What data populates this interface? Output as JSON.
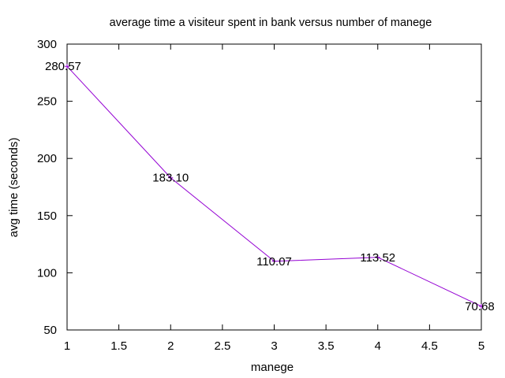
{
  "chart_data": {
    "type": "line",
    "title": "average time a visiteur spent in bank versus number of manege",
    "xlabel": "manege",
    "ylabel": "avg time (seconds)",
    "xlim": [
      1,
      5
    ],
    "ylim": [
      50,
      300
    ],
    "xticks": [
      "1",
      "1.5",
      "2",
      "2.5",
      "3",
      "3.5",
      "4",
      "4.5",
      "5"
    ],
    "yticks": [
      "50",
      "100",
      "150",
      "200",
      "250",
      "300"
    ],
    "grid": false,
    "legend": "none",
    "series": [
      {
        "color": "#9400d3",
        "x": [
          1,
          2,
          3,
          4,
          5
        ],
        "y": [
          280.57,
          183.1,
          110.07,
          113.52,
          70.68
        ],
        "labels": [
          "280.57",
          "183.10",
          "110.07",
          "113.52",
          "70.68"
        ]
      }
    ]
  }
}
